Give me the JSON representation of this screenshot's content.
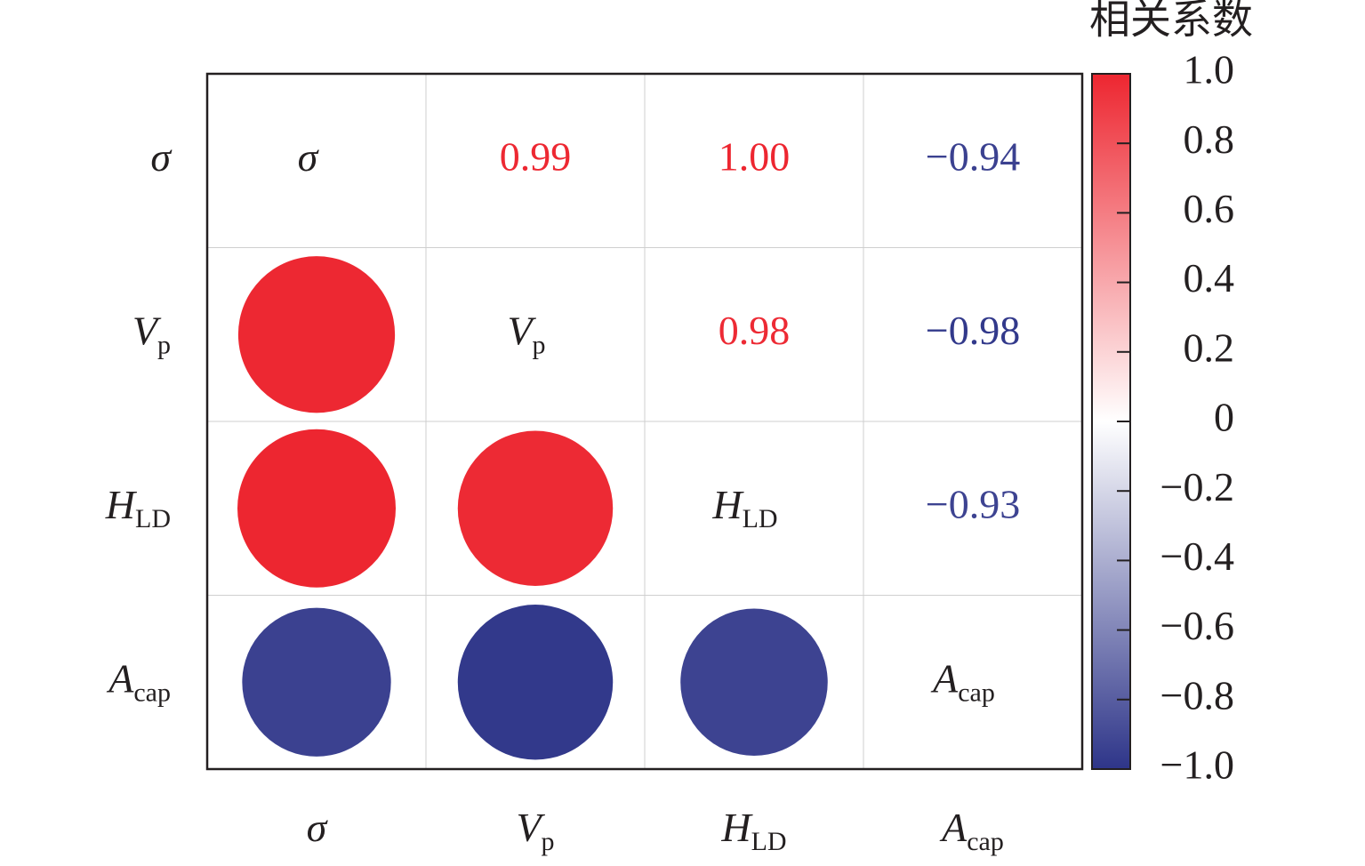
{
  "chart_data": {
    "type": "correlation",
    "variables": [
      {
        "symbol": "σ"
      },
      {
        "symbol": "V",
        "subscript": "p"
      },
      {
        "symbol": "H",
        "subscript": "LD"
      },
      {
        "symbol": "A",
        "subscript": "cap"
      }
    ],
    "values": [
      [
        0.99,
        1.0,
        -0.94
      ],
      [
        0.98,
        -0.98
      ],
      [
        -0.93
      ]
    ],
    "value_labels": [
      [
        "0.99",
        "1.00",
        "−0.94"
      ],
      [
        "0.98",
        "−0.98"
      ],
      [
        "−0.93"
      ]
    ],
    "colorbar_title": "相关系数",
    "clim": [
      -1,
      1
    ],
    "colormap": [
      "#2e3589",
      "#ffffff",
      "#ed2630"
    ],
    "cticks": [
      {
        "value": 1,
        "label": "1.0"
      },
      {
        "value": 0.8,
        "label": "0.8"
      },
      {
        "value": 0.6,
        "label": "0.6"
      },
      {
        "value": 0.4,
        "label": "0.4"
      },
      {
        "value": 0.2,
        "label": "0.2"
      },
      0,
      {
        "value": -0.2,
        "label": "−0.2"
      },
      {
        "value": -0.4,
        "label": "−0.4"
      },
      {
        "value": -0.6,
        "label": "−0.6"
      },
      {
        "value": -0.8,
        "label": "−0.8"
      },
      {
        "value": -1,
        "label": "−1.0"
      }
    ]
  }
}
